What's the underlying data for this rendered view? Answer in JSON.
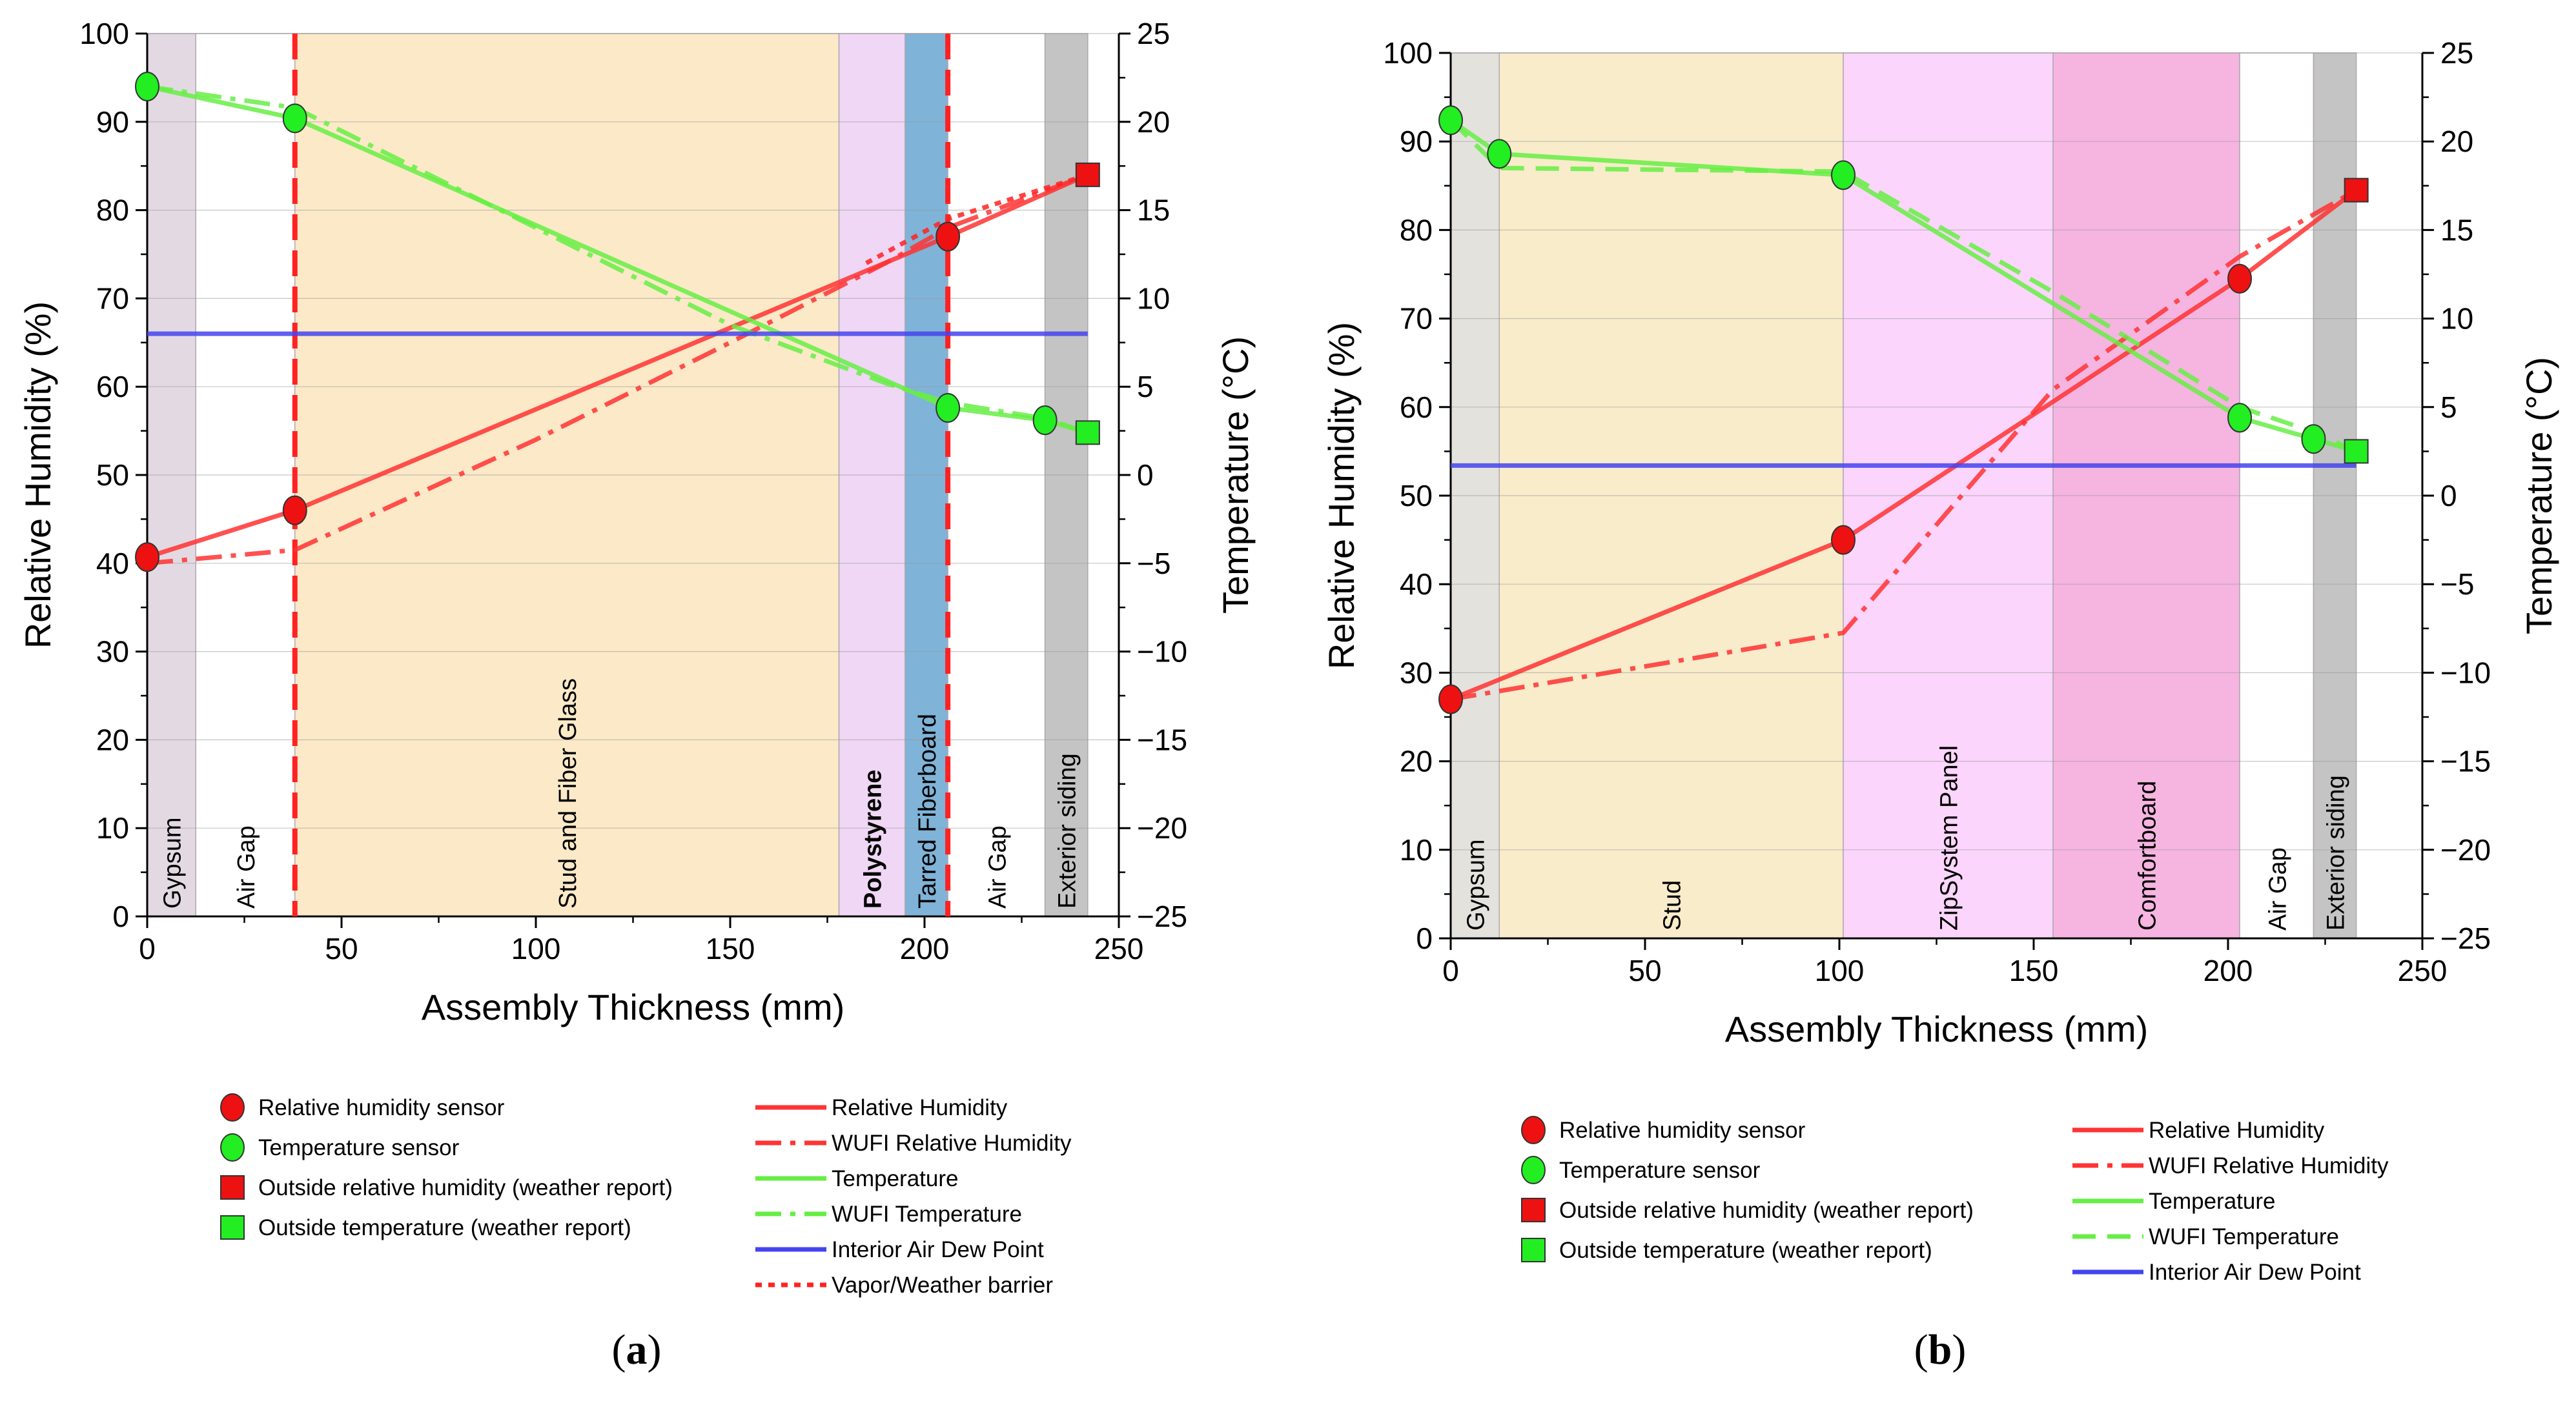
{
  "colors": {
    "rh": "#ff3333",
    "rh_sensor": "#ee1111",
    "temp": "#66ee44",
    "temp_sensor": "#22ee22",
    "dew": "#4444ee",
    "barrier": "#ff2222"
  },
  "chart_data": [
    {
      "panel": "a",
      "caption": "(a)",
      "type": "line",
      "xlabel": "Assembly Thickness (mm)",
      "ylabel": "Relative Humidity (%)",
      "y2label": "Temperature (°C)",
      "xlim": [
        0,
        250
      ],
      "ylim": [
        0,
        100
      ],
      "y2lim": [
        -25,
        25
      ],
      "xticks": [
        0,
        50,
        100,
        150,
        200,
        250
      ],
      "yticks": [
        0,
        10,
        20,
        30,
        40,
        50,
        60,
        70,
        80,
        90,
        100
      ],
      "y2ticks": [
        -25,
        -20,
        -15,
        -10,
        -5,
        0,
        5,
        10,
        15,
        20,
        25
      ],
      "layers": [
        {
          "name": "Gypsum",
          "from": 0,
          "to": 12.5,
          "color": "#e3d9e3",
          "bold": false
        },
        {
          "name": "Air Gap",
          "from": 12.5,
          "to": 38,
          "color": "#ffffff",
          "bold": false
        },
        {
          "name": "Stud and Fiber Glass",
          "from": 38,
          "to": 178,
          "color": "#fbe9c8",
          "bold": false
        },
        {
          "name": "Polystyrene",
          "from": 178,
          "to": 195,
          "color": "#efd7f5",
          "bold": true
        },
        {
          "name": "Tarred Fiberboard",
          "from": 195,
          "to": 206,
          "color": "#7fb3d8",
          "bold": false
        },
        {
          "name": "Air Gap",
          "from": 206,
          "to": 231,
          "color": "#ffffff",
          "bold": false
        },
        {
          "name": "Exterior siding",
          "from": 231,
          "to": 242,
          "color": "#c4c4c4",
          "bold": false
        }
      ],
      "barriers": [
        38,
        206
      ],
      "series": [
        {
          "name": "Relative Humidity",
          "axis": "left",
          "style": "solid",
          "x": [
            0,
            38,
            206,
            242
          ],
          "y": [
            40.7,
            46,
            77,
            84
          ]
        },
        {
          "name": "WUFI Relative Humidity",
          "axis": "left",
          "style": "dashdot",
          "x": [
            0,
            38,
            100,
            150,
            190,
            206,
            230,
            242
          ],
          "y": [
            40,
            41.5,
            54,
            65,
            74,
            78,
            82,
            84
          ]
        },
        {
          "name": "Temperature",
          "axis": "right",
          "style": "solid",
          "x": [
            0,
            38,
            206,
            231,
            242
          ],
          "y": [
            22,
            20.2,
            3.8,
            3.1,
            2.4
          ]
        },
        {
          "name": "WUFI Temperature",
          "axis": "right",
          "style": "dashdot",
          "x": [
            0,
            38,
            100,
            150,
            190,
            206,
            231,
            242
          ],
          "y": [
            22,
            20.8,
            14,
            8.5,
            5.2,
            4.1,
            3.2,
            2.4
          ]
        },
        {
          "name": "Interior Air Dew Point",
          "axis": "right",
          "style": "solid",
          "x": [
            0,
            242
          ],
          "y": [
            8,
            8
          ]
        },
        {
          "name": "Vapor/Weather barrier",
          "axis": "left",
          "style": "dotted",
          "x": [
            185,
            206,
            242
          ],
          "y": [
            74,
            79,
            84
          ]
        }
      ],
      "markers": [
        {
          "name": "Relative humidity sensor",
          "axis": "left",
          "shape": "circle",
          "color": "#ee1111",
          "x": [
            0,
            38,
            206
          ],
          "y": [
            40.7,
            46,
            77
          ]
        },
        {
          "name": "Temperature sensor",
          "axis": "right",
          "shape": "circle",
          "color": "#22ee22",
          "x": [
            0,
            38,
            206,
            231
          ],
          "y": [
            22,
            20.2,
            3.8,
            3.1
          ]
        },
        {
          "name": "Outside relative humidity (weather report)",
          "axis": "left",
          "shape": "square",
          "color": "#ee1111",
          "x": [
            242
          ],
          "y": [
            84
          ]
        },
        {
          "name": "Outside temperature (weather report)",
          "axis": "right",
          "shape": "square",
          "color": "#22ee22",
          "x": [
            242
          ],
          "y": [
            2.4
          ]
        }
      ],
      "legend_markers": [
        "Relative humidity sensor",
        "Temperature sensor",
        "Outside relative humidity (weather report)",
        "Outside temperature (weather report)"
      ],
      "legend_lines": [
        "Relative Humidity",
        "WUFI Relative Humidity",
        "Temperature",
        "WUFI Temperature",
        "Interior Air Dew Point",
        "Vapor/Weather barrier"
      ]
    },
    {
      "panel": "b",
      "caption": "(b)",
      "type": "line",
      "xlabel": "Assembly Thickness (mm)",
      "ylabel": "Relative Humidity (%)",
      "y2label": "Temperature (°C)",
      "xlim": [
        0,
        250
      ],
      "ylim": [
        0,
        100
      ],
      "y2lim": [
        -25,
        25
      ],
      "xticks": [
        0,
        50,
        100,
        150,
        200,
        250
      ],
      "yticks": [
        0,
        10,
        20,
        30,
        40,
        50,
        60,
        70,
        80,
        90,
        100
      ],
      "y2ticks": [
        -25,
        -20,
        -15,
        -10,
        -5,
        0,
        5,
        10,
        15,
        20,
        25
      ],
      "layers": [
        {
          "name": "Gypsum",
          "from": 0,
          "to": 12.5,
          "color": "#e4e2dc",
          "bold": false
        },
        {
          "name": "Stud",
          "from": 12.5,
          "to": 101,
          "color": "#f8eccb",
          "bold": false
        },
        {
          "name": "ZipSystem Panel",
          "from": 101,
          "to": 155,
          "color": "#fbd5fb",
          "bold": false
        },
        {
          "name": "Comfortboard",
          "from": 155,
          "to": 203,
          "color": "#f6b4e1",
          "bold": false
        },
        {
          "name": "Air Gap",
          "from": 203,
          "to": 222,
          "color": "#ffffff",
          "bold": false
        },
        {
          "name": "Exterior siding",
          "from": 222,
          "to": 233,
          "color": "#c4c4c4",
          "bold": false
        }
      ],
      "barriers": [],
      "series": [
        {
          "name": "Relative Humidity",
          "axis": "left",
          "style": "solid",
          "x": [
            0,
            101,
            203,
            233
          ],
          "y": [
            27,
            45,
            74.5,
            84.5
          ]
        },
        {
          "name": "WUFI Relative Humidity",
          "axis": "left",
          "style": "dashdot",
          "x": [
            0,
            101,
            155,
            203,
            233
          ],
          "y": [
            27,
            34.5,
            62,
            77,
            84.5
          ]
        },
        {
          "name": "Temperature",
          "axis": "right",
          "style": "solid",
          "x": [
            0,
            12.5,
            101,
            203,
            222,
            233
          ],
          "y": [
            21.2,
            19.3,
            18.1,
            4.4,
            3.2,
            2.5
          ]
        },
        {
          "name": "WUFI Temperature",
          "axis": "right",
          "style": "dashed",
          "x": [
            0,
            12.5,
            101,
            155,
            203,
            222,
            233
          ],
          "y": [
            21.2,
            18.5,
            18.3,
            11.5,
            5,
            3.6,
            2.5
          ]
        },
        {
          "name": "Interior Air Dew Point",
          "axis": "right",
          "style": "solid",
          "x": [
            0,
            233
          ],
          "y": [
            1.7,
            1.7
          ]
        }
      ],
      "markers": [
        {
          "name": "Relative humidity sensor",
          "axis": "left",
          "shape": "circle",
          "color": "#ee1111",
          "x": [
            0,
            101,
            203
          ],
          "y": [
            27,
            45,
            74.5
          ]
        },
        {
          "name": "Temperature sensor",
          "axis": "right",
          "shape": "circle",
          "color": "#22ee22",
          "x": [
            0,
            12.5,
            101,
            203,
            222
          ],
          "y": [
            21.2,
            19.3,
            18.1,
            4.4,
            3.2
          ]
        },
        {
          "name": "Outside relative humidity (weather report)",
          "axis": "left",
          "shape": "square",
          "color": "#ee1111",
          "x": [
            233
          ],
          "y": [
            84.5
          ]
        },
        {
          "name": "Outside temperature (weather report)",
          "axis": "right",
          "shape": "square",
          "color": "#22ee22",
          "x": [
            233
          ],
          "y": [
            2.5
          ]
        }
      ],
      "legend_markers": [
        "Relative humidity sensor",
        "Temperature sensor",
        "Outside relative humidity (weather report)",
        "Outside temperature (weather report)"
      ],
      "legend_lines": [
        "Relative Humidity",
        "WUFI Relative Humidity",
        "Temperature",
        "WUFI Temperature",
        "Interior Air Dew Point"
      ]
    }
  ]
}
